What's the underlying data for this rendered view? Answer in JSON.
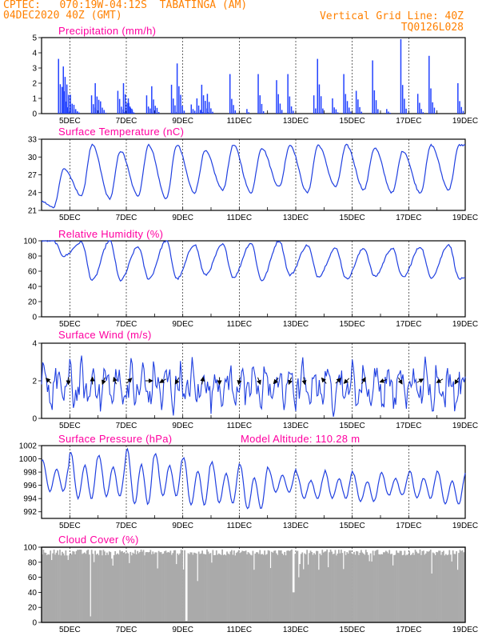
{
  "header": {
    "left_line1": "CPTEC:   070:19W-04:12S  TABATINGA (AM)",
    "left_line2": "04DEC2020 40Z (GMT)",
    "right_line1": "Vertical Grid Line: 40Z",
    "right_line2": "TQ0126L028"
  },
  "colors": {
    "header_text": "#ff8000",
    "panel_title": "#ff00a0",
    "series_line": "#2040e0",
    "bars": "#1f3fff",
    "cloud": "#aaaaaa",
    "wind_arrow": "#000000"
  },
  "x_axis": {
    "tick_labels": [
      "5DEC",
      "7DEC",
      "9DEC",
      "11DEC",
      "13DEC",
      "15DEC",
      "17DEC",
      "19DEC"
    ],
    "day_range": [
      4,
      19
    ],
    "tick_days": [
      5,
      7,
      9,
      11,
      13,
      15,
      17,
      19
    ]
  },
  "chart_data": [
    {
      "id": "precip",
      "type": "bar",
      "title": "Precipitation  (mm/h)",
      "ylim": [
        0,
        5
      ],
      "yticks": [
        0,
        1,
        2,
        3,
        4,
        5
      ],
      "events": [
        {
          "day": 4.58,
          "peak": 3.6,
          "len": 0.5
        },
        {
          "day": 4.75,
          "peak": 3.1,
          "len": 0.7
        },
        {
          "day": 5.0,
          "peak": 0.6,
          "len": 0.5
        },
        {
          "day": 5.75,
          "peak": 1.2,
          "len": 0.4
        },
        {
          "day": 5.88,
          "peak": 2.0,
          "len": 0.5
        },
        {
          "day": 6.68,
          "peak": 1.5,
          "len": 0.4
        },
        {
          "day": 6.88,
          "peak": 2.0,
          "len": 0.5
        },
        {
          "day": 7.05,
          "peak": 1.0,
          "len": 0.3
        },
        {
          "day": 7.7,
          "peak": 1.2,
          "len": 0.3
        },
        {
          "day": 7.88,
          "peak": 1.8,
          "len": 0.4
        },
        {
          "day": 8.58,
          "peak": 1.9,
          "len": 0.3
        },
        {
          "day": 8.78,
          "peak": 3.3,
          "len": 0.4
        },
        {
          "day": 9.28,
          "peak": 0.6,
          "len": 0.3
        },
        {
          "day": 9.48,
          "peak": 1.0,
          "len": 0.3
        },
        {
          "day": 9.65,
          "peak": 1.9,
          "len": 0.4
        },
        {
          "day": 9.85,
          "peak": 1.3,
          "len": 0.3
        },
        {
          "day": 10.65,
          "peak": 2.6,
          "len": 0.3
        },
        {
          "day": 11.25,
          "peak": 0.3,
          "len": 0.2
        },
        {
          "day": 11.65,
          "peak": 2.6,
          "len": 0.3
        },
        {
          "day": 12.3,
          "peak": 2.2,
          "len": 0.3
        },
        {
          "day": 12.7,
          "peak": 2.6,
          "len": 0.3
        },
        {
          "day": 13.62,
          "peak": 1.2,
          "len": 0.2
        },
        {
          "day": 13.75,
          "peak": 3.6,
          "len": 0.3
        },
        {
          "day": 14.28,
          "peak": 1.0,
          "len": 0.3
        },
        {
          "day": 14.68,
          "peak": 2.6,
          "len": 0.4
        },
        {
          "day": 15.12,
          "peak": 1.5,
          "len": 0.3
        },
        {
          "day": 15.7,
          "peak": 3.5,
          "len": 0.3
        },
        {
          "day": 16.2,
          "peak": 0.3,
          "len": 0.3
        },
        {
          "day": 16.7,
          "peak": 4.9,
          "len": 0.3
        },
        {
          "day": 17.3,
          "peak": 1.3,
          "len": 0.3
        },
        {
          "day": 17.7,
          "peak": 3.8,
          "len": 0.3
        },
        {
          "day": 18.72,
          "peak": 2.0,
          "len": 0.3
        }
      ]
    },
    {
      "id": "temp",
      "type": "line",
      "title": "Surface Temperature (nC)",
      "ylim": [
        21,
        33
      ],
      "yticks": [
        21,
        24,
        27,
        30,
        33
      ],
      "daily_max": [
        28,
        32,
        31,
        32,
        32,
        31,
        32,
        31.5,
        32,
        32,
        32,
        31.5,
        31,
        32,
        32
      ],
      "daily_min": [
        21.5,
        23.5,
        23,
        23.5,
        23,
        24,
        24.5,
        24,
        25,
        24,
        25,
        24.5,
        24,
        24,
        24.5
      ],
      "start_value": 22.5
    },
    {
      "id": "rh",
      "type": "line",
      "title": "Relative Humidity (%)",
      "ylim": [
        0,
        100
      ],
      "yticks": [
        0,
        20,
        40,
        60,
        80,
        100
      ],
      "daily_max": [
        100,
        98,
        100,
        92,
        100,
        95,
        95,
        97,
        100,
        94,
        90,
        90,
        90,
        92,
        95
      ],
      "daily_min": [
        80,
        48,
        48,
        50,
        50,
        55,
        52,
        48,
        55,
        53,
        50,
        53,
        52,
        52,
        50
      ],
      "start_value": 100
    },
    {
      "id": "wind",
      "type": "line",
      "title": "Surface Wind (m/s)",
      "ylim": [
        0,
        4
      ],
      "yticks": [
        0,
        2,
        4
      ],
      "mean": 1.7,
      "arrows": [
        {
          "day": 4.25,
          "deg": 135
        },
        {
          "day": 4.95,
          "deg": 270
        },
        {
          "day": 5.8,
          "deg": 90
        },
        {
          "day": 6.2,
          "deg": 250
        },
        {
          "day": 6.6,
          "deg": 110
        },
        {
          "day": 7.1,
          "deg": 45
        },
        {
          "day": 7.8,
          "deg": 0
        },
        {
          "day": 8.3,
          "deg": 210
        },
        {
          "day": 8.8,
          "deg": 240
        },
        {
          "day": 9.7,
          "deg": 80
        },
        {
          "day": 10.3,
          "deg": 270
        },
        {
          "day": 11.0,
          "deg": 260
        },
        {
          "day": 11.7,
          "deg": 290
        },
        {
          "day": 12.3,
          "deg": 230
        },
        {
          "day": 12.8,
          "deg": 250
        },
        {
          "day": 13.3,
          "deg": 280
        },
        {
          "day": 14.0,
          "deg": 130
        },
        {
          "day": 14.5,
          "deg": 45
        },
        {
          "day": 14.8,
          "deg": 225
        },
        {
          "day": 15.4,
          "deg": 60
        },
        {
          "day": 16.1,
          "deg": 200
        },
        {
          "day": 16.7,
          "deg": 300
        },
        {
          "day": 17.4,
          "deg": 30
        },
        {
          "day": 18.1,
          "deg": 210
        },
        {
          "day": 18.7,
          "deg": 240
        }
      ]
    },
    {
      "id": "pres",
      "type": "line",
      "title": "Surface Pressure (hPa)",
      "ylim": [
        991,
        1002
      ],
      "yticks": [
        992,
        994,
        996,
        998,
        1000,
        1002
      ],
      "daily_max": [
        999.8,
        1001,
        1000.5,
        1001.5,
        1000.8,
        1000.2,
        999.5,
        999,
        998.5,
        997.8,
        998.2,
        997.8,
        998,
        998.2,
        998
      ],
      "daily_min": [
        994.5,
        993,
        993.5,
        992,
        993.5,
        992,
        992.5,
        991.5,
        994.5,
        993.5,
        993.5,
        993,
        994,
        993.5,
        992.5
      ],
      "extra_text": "Model Altitude: 110.28 m"
    },
    {
      "id": "cloud",
      "type": "area",
      "title": "Cloud Cover (%)",
      "ylim": [
        0,
        100
      ],
      "yticks": [
        0,
        20,
        40,
        60,
        80,
        100
      ],
      "typical": 93,
      "dips": [
        {
          "day": 5.7,
          "value": 8
        },
        {
          "day": 9.1,
          "value": 2
        },
        {
          "day": 9.5,
          "value": 55
        },
        {
          "day": 11.5,
          "value": 70
        },
        {
          "day": 12.9,
          "value": 40
        },
        {
          "day": 13.1,
          "value": 60
        },
        {
          "day": 13.8,
          "value": 70
        },
        {
          "day": 17.8,
          "value": 65
        },
        {
          "day": 18.7,
          "value": 70
        }
      ]
    }
  ]
}
